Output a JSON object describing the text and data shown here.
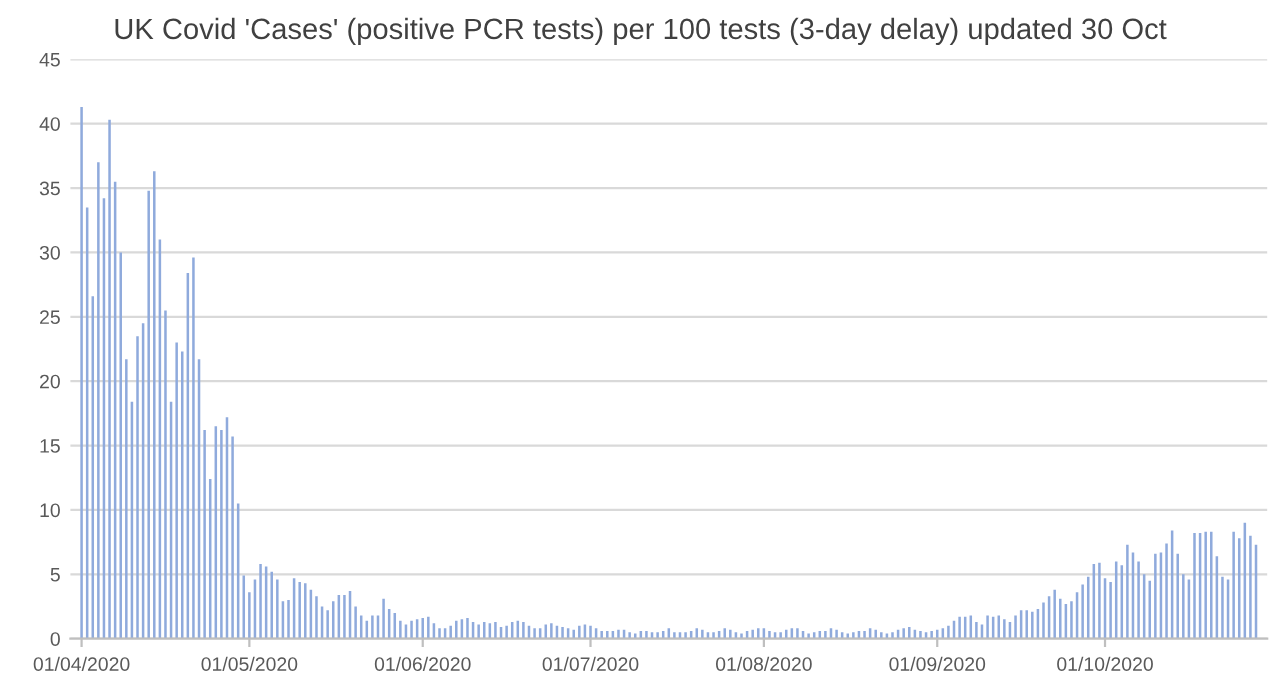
{
  "chart_data": {
    "type": "bar",
    "title": "UK Covid 'Cases' (positive PCR tests) per 100 tests (3-day delay) updated 30 Oct",
    "x": [
      "2020-04-01",
      "2020-04-02",
      "2020-04-03",
      "2020-04-04",
      "2020-04-05",
      "2020-04-06",
      "2020-04-07",
      "2020-04-08",
      "2020-04-09",
      "2020-04-10",
      "2020-04-11",
      "2020-04-12",
      "2020-04-13",
      "2020-04-14",
      "2020-04-15",
      "2020-04-16",
      "2020-04-17",
      "2020-04-18",
      "2020-04-19",
      "2020-04-20",
      "2020-04-21",
      "2020-04-22",
      "2020-04-23",
      "2020-04-24",
      "2020-04-25",
      "2020-04-26",
      "2020-04-27",
      "2020-04-28",
      "2020-04-29",
      "2020-04-30",
      "2020-05-01",
      "2020-05-02",
      "2020-05-03",
      "2020-05-04",
      "2020-05-05",
      "2020-05-06",
      "2020-05-07",
      "2020-05-08",
      "2020-05-09",
      "2020-05-10",
      "2020-05-11",
      "2020-05-12",
      "2020-05-13",
      "2020-05-14",
      "2020-05-15",
      "2020-05-16",
      "2020-05-17",
      "2020-05-18",
      "2020-05-19",
      "2020-05-20",
      "2020-05-21",
      "2020-05-22",
      "2020-05-23",
      "2020-05-24",
      "2020-05-25",
      "2020-05-26",
      "2020-05-27",
      "2020-05-28",
      "2020-05-29",
      "2020-05-30",
      "2020-05-31",
      "2020-06-01",
      "2020-06-02",
      "2020-06-03",
      "2020-06-04",
      "2020-06-05",
      "2020-06-06",
      "2020-06-07",
      "2020-06-08",
      "2020-06-09",
      "2020-06-10",
      "2020-06-11",
      "2020-06-12",
      "2020-06-13",
      "2020-06-14",
      "2020-06-15",
      "2020-06-16",
      "2020-06-17",
      "2020-06-18",
      "2020-06-19",
      "2020-06-20",
      "2020-06-21",
      "2020-06-22",
      "2020-06-23",
      "2020-06-24",
      "2020-06-25",
      "2020-06-26",
      "2020-06-27",
      "2020-06-28",
      "2020-06-29",
      "2020-06-30",
      "2020-07-01",
      "2020-07-02",
      "2020-07-03",
      "2020-07-04",
      "2020-07-05",
      "2020-07-06",
      "2020-07-07",
      "2020-07-08",
      "2020-07-09",
      "2020-07-10",
      "2020-07-11",
      "2020-07-12",
      "2020-07-13",
      "2020-07-14",
      "2020-07-15",
      "2020-07-16",
      "2020-07-17",
      "2020-07-18",
      "2020-07-19",
      "2020-07-20",
      "2020-07-21",
      "2020-07-22",
      "2020-07-23",
      "2020-07-24",
      "2020-07-25",
      "2020-07-26",
      "2020-07-27",
      "2020-07-28",
      "2020-07-29",
      "2020-07-30",
      "2020-07-31",
      "2020-08-01",
      "2020-08-02",
      "2020-08-03",
      "2020-08-04",
      "2020-08-05",
      "2020-08-06",
      "2020-08-07",
      "2020-08-08",
      "2020-08-09",
      "2020-08-10",
      "2020-08-11",
      "2020-08-12",
      "2020-08-13",
      "2020-08-14",
      "2020-08-15",
      "2020-08-16",
      "2020-08-17",
      "2020-08-18",
      "2020-08-19",
      "2020-08-20",
      "2020-08-21",
      "2020-08-22",
      "2020-08-23",
      "2020-08-24",
      "2020-08-25",
      "2020-08-26",
      "2020-08-27",
      "2020-08-28",
      "2020-08-29",
      "2020-08-30",
      "2020-08-31",
      "2020-09-01",
      "2020-09-02",
      "2020-09-03",
      "2020-09-04",
      "2020-09-05",
      "2020-09-06",
      "2020-09-07",
      "2020-09-08",
      "2020-09-09",
      "2020-09-10",
      "2020-09-11",
      "2020-09-12",
      "2020-09-13",
      "2020-09-14",
      "2020-09-15",
      "2020-09-16",
      "2020-09-17",
      "2020-09-18",
      "2020-09-19",
      "2020-09-20",
      "2020-09-21",
      "2020-09-22",
      "2020-09-23",
      "2020-09-24",
      "2020-09-25",
      "2020-09-26",
      "2020-09-27",
      "2020-09-28",
      "2020-09-29",
      "2020-09-30",
      "2020-10-01",
      "2020-10-02",
      "2020-10-03",
      "2020-10-04",
      "2020-10-05",
      "2020-10-06",
      "2020-10-07",
      "2020-10-08",
      "2020-10-09",
      "2020-10-10",
      "2020-10-11",
      "2020-10-12",
      "2020-10-13",
      "2020-10-14",
      "2020-10-15",
      "2020-10-16",
      "2020-10-17",
      "2020-10-18",
      "2020-10-19",
      "2020-10-20",
      "2020-10-21",
      "2020-10-22",
      "2020-10-23",
      "2020-10-24",
      "2020-10-25",
      "2020-10-26",
      "2020-10-27",
      "2020-10-28"
    ],
    "values": [
      41.3,
      33.5,
      26.6,
      37,
      34.2,
      40.3,
      35.5,
      30,
      21.7,
      18.4,
      23.5,
      24.5,
      34.8,
      36.3,
      31,
      25.5,
      18.4,
      23,
      22.3,
      28.4,
      29.6,
      21.7,
      16.2,
      12.4,
      16.5,
      16.2,
      17.2,
      15.7,
      10.5,
      4.9,
      3.6,
      4.6,
      5.8,
      5.6,
      5.2,
      4.6,
      2.9,
      3.0,
      4.7,
      4.4,
      4.3,
      3.8,
      3.3,
      2.5,
      2.2,
      2.9,
      3.4,
      3.4,
      3.7,
      2.5,
      1.8,
      1.4,
      1.8,
      1.8,
      3.1,
      2.3,
      2.0,
      1.4,
      1.1,
      1.4,
      1.5,
      1.6,
      1.7,
      1.2,
      0.8,
      0.8,
      1.0,
      1.4,
      1.5,
      1.6,
      1.3,
      1.1,
      1.3,
      1.2,
      1.3,
      0.9,
      1.0,
      1.3,
      1.4,
      1.3,
      1.0,
      0.8,
      0.8,
      1.1,
      1.2,
      1.0,
      0.9,
      0.8,
      0.7,
      1.0,
      1.1,
      1.0,
      0.8,
      0.6,
      0.6,
      0.6,
      0.7,
      0.7,
      0.5,
      0.4,
      0.6,
      0.6,
      0.5,
      0.5,
      0.6,
      0.8,
      0.5,
      0.5,
      0.5,
      0.6,
      0.8,
      0.7,
      0.5,
      0.5,
      0.6,
      0.8,
      0.7,
      0.5,
      0.4,
      0.6,
      0.7,
      0.8,
      0.8,
      0.6,
      0.5,
      0.5,
      0.7,
      0.8,
      0.8,
      0.6,
      0.4,
      0.5,
      0.6,
      0.6,
      0.8,
      0.7,
      0.5,
      0.4,
      0.5,
      0.6,
      0.6,
      0.8,
      0.7,
      0.5,
      0.4,
      0.5,
      0.7,
      0.8,
      0.9,
      0.7,
      0.6,
      0.5,
      0.6,
      0.7,
      0.8,
      1.0,
      1.4,
      1.7,
      1.7,
      1.8,
      1.3,
      1.1,
      1.8,
      1.7,
      1.8,
      1.5,
      1.3,
      1.8,
      2.2,
      2.2,
      2.1,
      2.3,
      2.8,
      3.3,
      3.8,
      3.1,
      2.7,
      2.9,
      3.6,
      4.2,
      4.8,
      5.8,
      5.9,
      4.7,
      4.4,
      6.0,
      5.7,
      7.3,
      6.7,
      6.0,
      5.0,
      4.5,
      6.6,
      6.7,
      7.4,
      8.4,
      6.6,
      5.0,
      4.6,
      8.2,
      8.2,
      8.3,
      8.3,
      6.4,
      4.8,
      4.6,
      8.3,
      7.8,
      9.0,
      8.0,
      7.3
    ],
    "color": "#8faadc",
    "xlim": [
      "2020-03-30",
      "2020-10-30"
    ],
    "xticks": [
      {
        "value": "2020-04-01",
        "label": "01/04/2020"
      },
      {
        "value": "2020-05-01",
        "label": "01/05/2020"
      },
      {
        "value": "2020-06-01",
        "label": "01/06/2020"
      },
      {
        "value": "2020-07-01",
        "label": "01/07/2020"
      },
      {
        "value": "2020-08-01",
        "label": "01/08/2020"
      },
      {
        "value": "2020-09-01",
        "label": "01/09/2020"
      },
      {
        "value": "2020-10-01",
        "label": "01/10/2020"
      }
    ],
    "ylim": [
      0,
      45
    ],
    "yticks": [
      0,
      5,
      10,
      15,
      20,
      25,
      30,
      35,
      40,
      45
    ],
    "grid": "y"
  }
}
